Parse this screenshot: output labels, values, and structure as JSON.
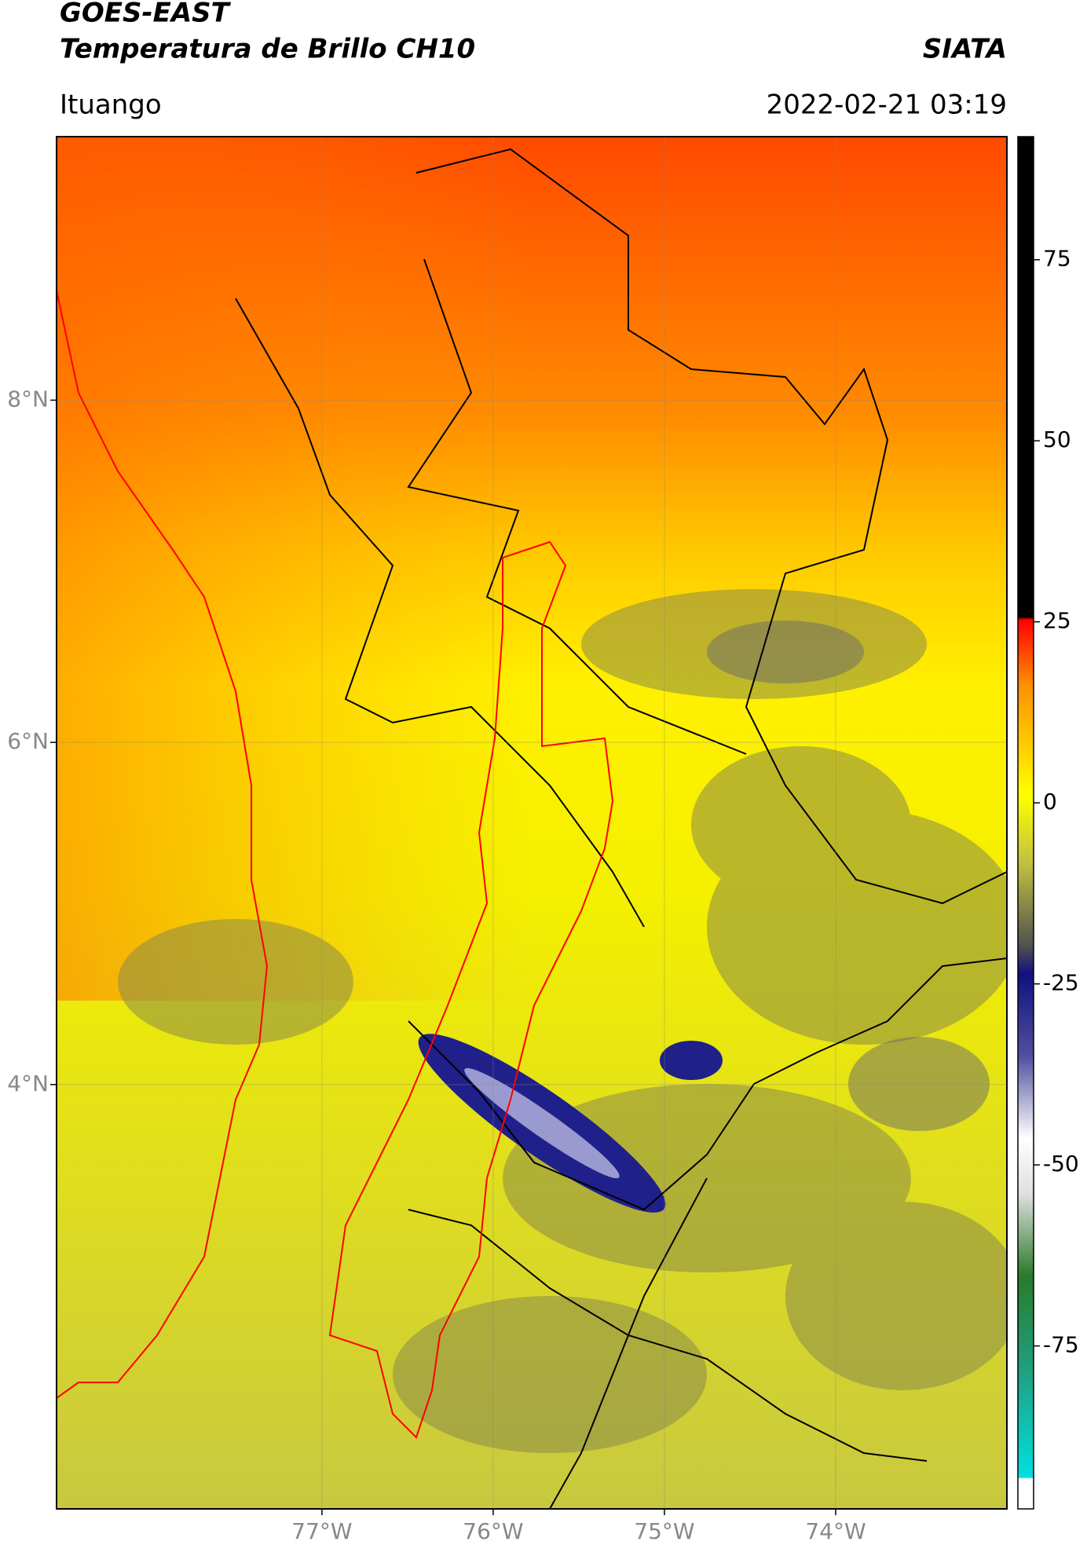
{
  "header": {
    "title": "GOES-EAST",
    "subtitle": "Temperatura de Brillo CH10",
    "brand": "SIATA",
    "location": "Ituango",
    "datetime": "2022-02-21 03:19"
  },
  "map": {
    "lonlim": [
      -78.55,
      -73.0
    ],
    "latlim": [
      1.52,
      9.54
    ],
    "xticks": [
      {
        "value": -77,
        "label": "77°W"
      },
      {
        "value": -76,
        "label": "76°W"
      },
      {
        "value": -75,
        "label": "75°W"
      },
      {
        "value": -74,
        "label": "74°W"
      }
    ],
    "yticks": [
      {
        "value": 4,
        "label": "4°N"
      },
      {
        "value": 6,
        "label": "6°N"
      },
      {
        "value": 8,
        "label": "8°N"
      }
    ],
    "grid": true
  },
  "colorbar": {
    "lim": [
      -97.5,
      92
    ],
    "ticks": [
      -75,
      -50,
      -25,
      0,
      25,
      50,
      75
    ]
  }
}
